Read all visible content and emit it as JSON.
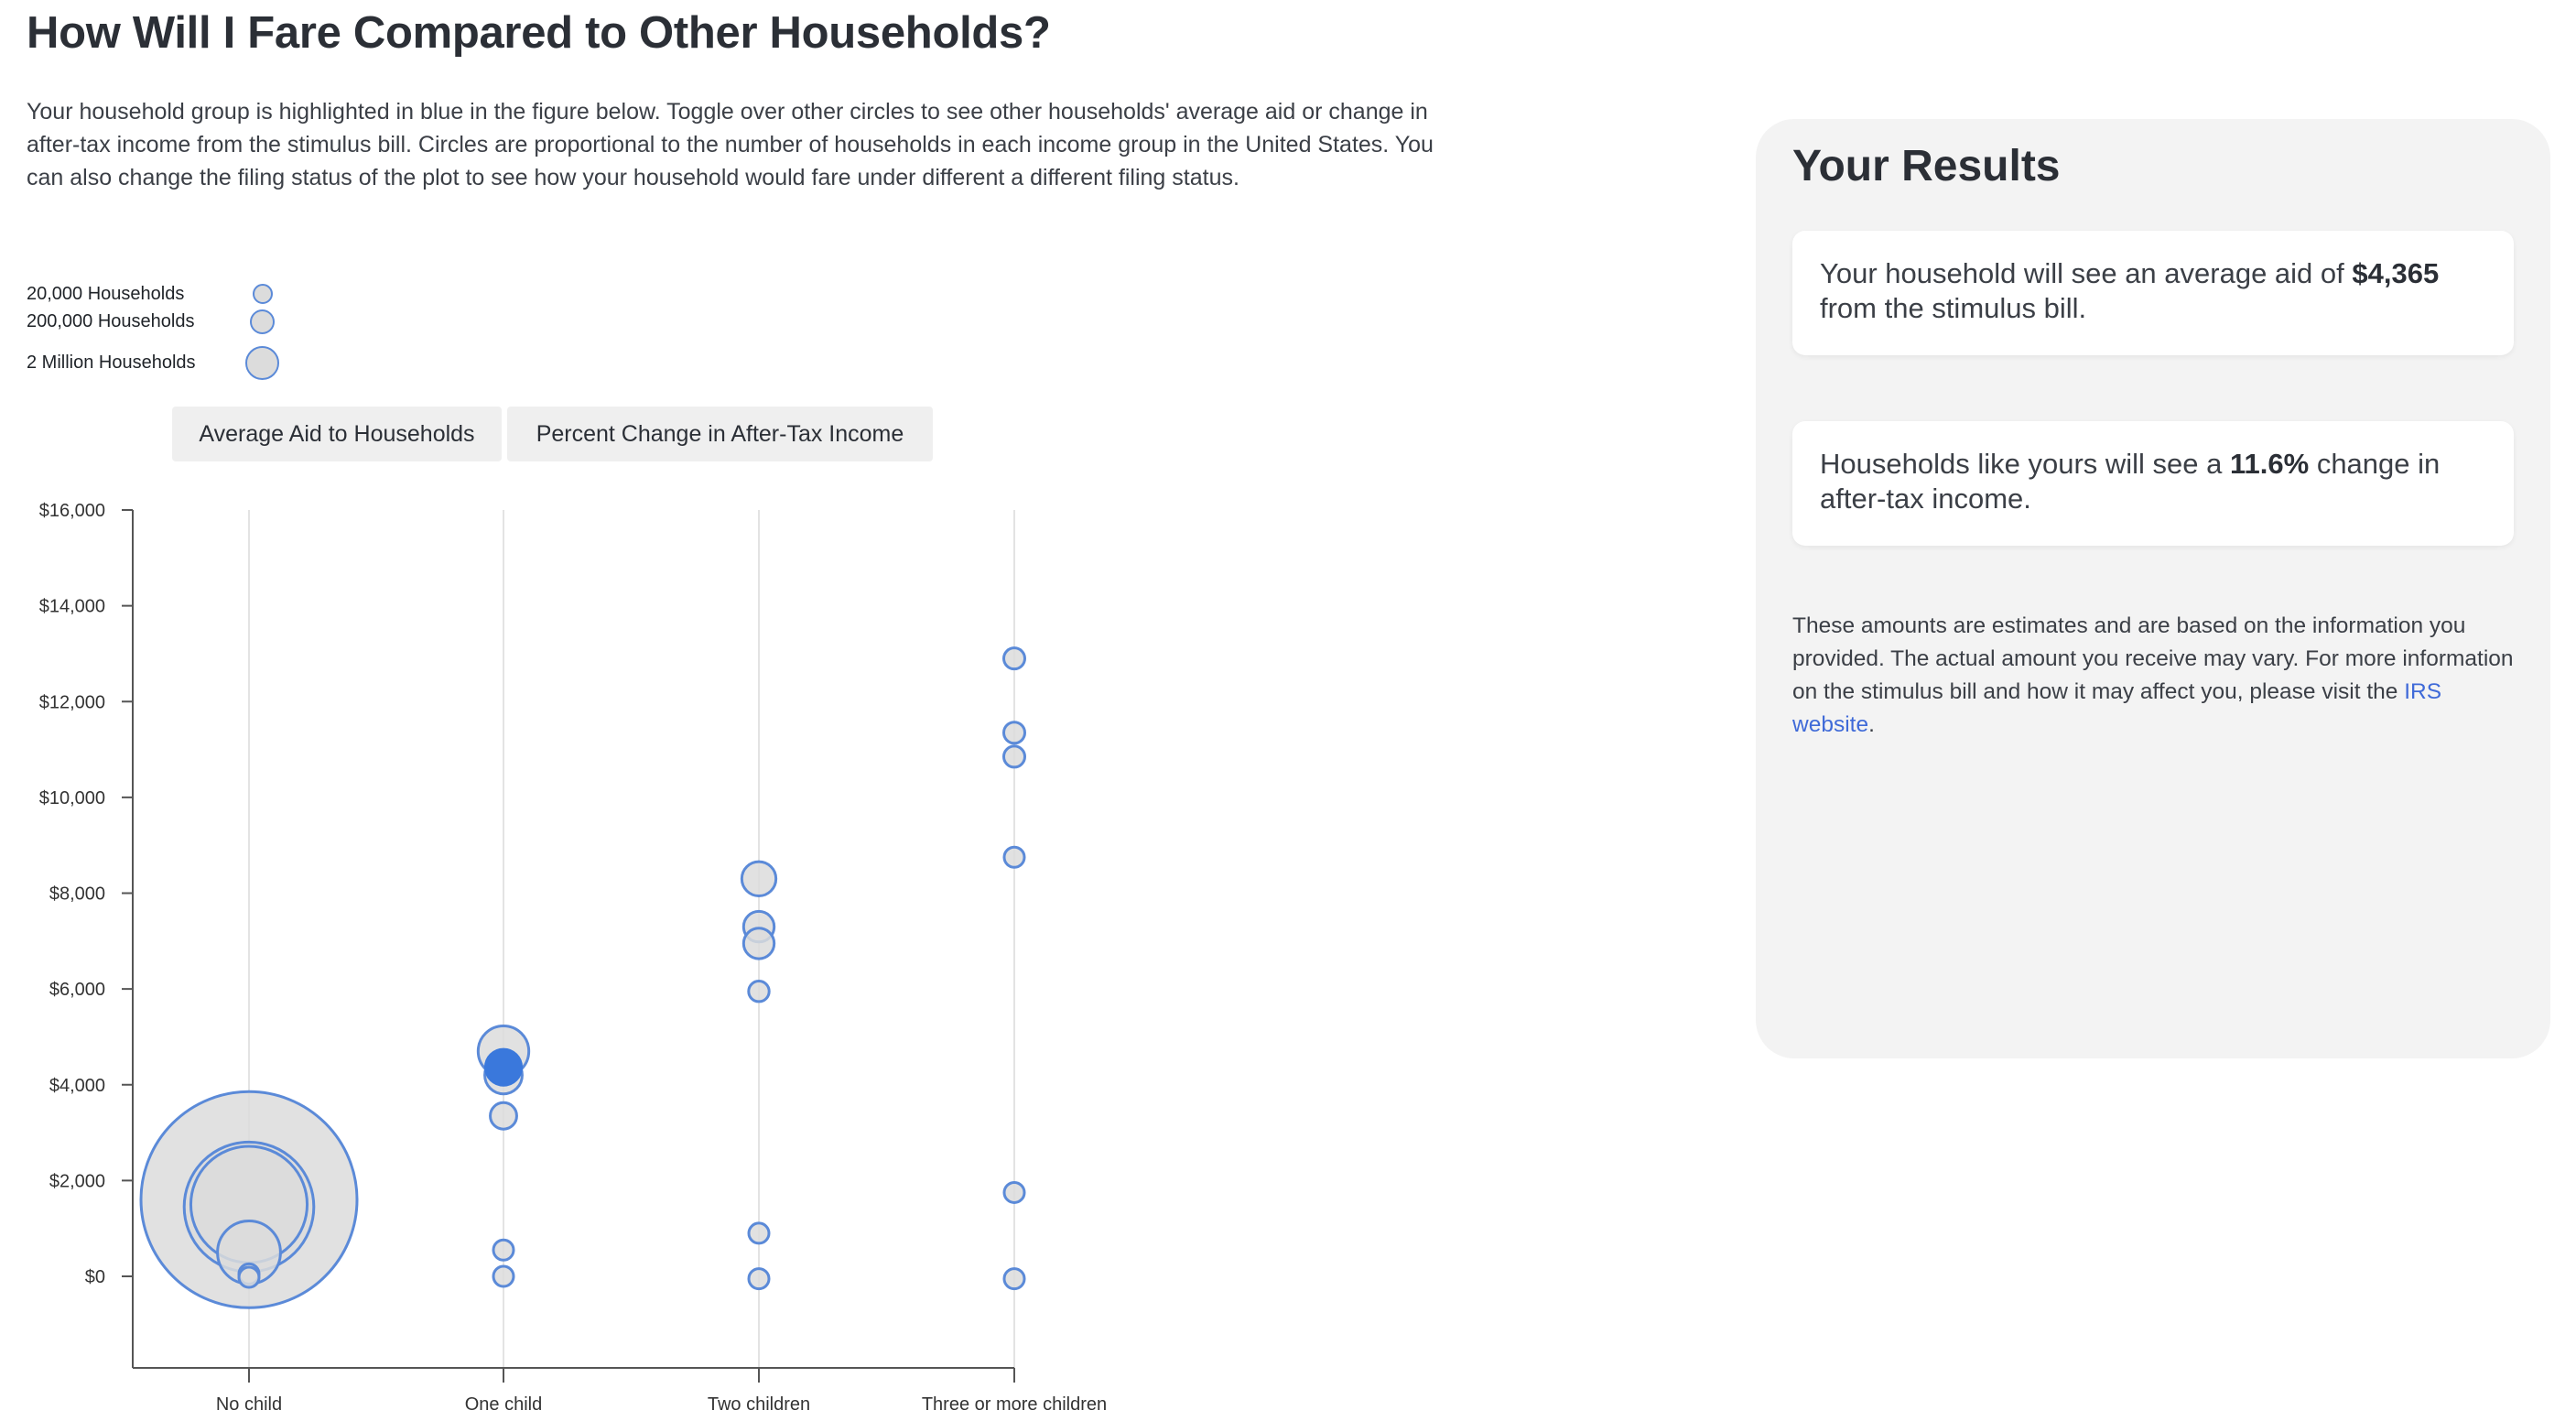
{
  "header": {
    "title": "How Will I Fare Compared to Other Households?",
    "intro": "Your household group is highlighted in blue in the figure below. Toggle over other circles to see other households' average aid or change in after-tax income from the stimulus bill. Circles are proportional to the number of households in each income group in the United States. You can also change the filing status of the plot to see how your household would fare under different a different filing status."
  },
  "legend": {
    "items": [
      {
        "label": "20,000 Households"
      },
      {
        "label": "200,000 Households"
      },
      {
        "label": "2 Million Households"
      }
    ]
  },
  "toggles": {
    "aid_label": "Average Aid to Households",
    "pct_label": "Percent Change in After-Tax Income"
  },
  "colors": {
    "highlight": "#3a78dc",
    "circle_fill": "#dcdcdc",
    "circle_stroke": "#5b8ad8",
    "axis": "#555555",
    "grid": "#e3e3e3"
  },
  "chart_data": {
    "type": "scatter",
    "ylim": [
      0,
      16000
    ],
    "yticks": [
      "$0",
      "$2,000",
      "$4,000",
      "$6,000",
      "$8,000",
      "$10,000",
      "$12,000",
      "$14,000",
      "$16,000"
    ],
    "ytick_values": [
      0,
      2000,
      4000,
      6000,
      8000,
      10000,
      12000,
      14000,
      16000
    ],
    "categories": [
      "No child",
      "One child",
      "Two children",
      "Three or more children"
    ],
    "points": [
      {
        "category": "No child",
        "y": 1600,
        "households": 20000000,
        "highlight": false
      },
      {
        "category": "No child",
        "y": 1450,
        "households": 7200000,
        "highlight": false
      },
      {
        "category": "No child",
        "y": 1500,
        "households": 5800000,
        "highlight": false
      },
      {
        "category": "No child",
        "y": 500,
        "households": 1700000,
        "highlight": false
      },
      {
        "category": "No child",
        "y": 50,
        "households": 160000,
        "highlight": false
      },
      {
        "category": "No child",
        "y": -20,
        "households": 90000,
        "highlight": false
      },
      {
        "category": "One child",
        "y": 4700,
        "households": 1100000,
        "highlight": false
      },
      {
        "category": "One child",
        "y": 4200,
        "households": 600000,
        "highlight": false
      },
      {
        "category": "One child",
        "y": 4365,
        "households": 550000,
        "highlight": true
      },
      {
        "category": "One child",
        "y": 3350,
        "households": 300000,
        "highlight": false
      },
      {
        "category": "One child",
        "y": 550,
        "households": 160000,
        "highlight": false
      },
      {
        "category": "One child",
        "y": 0,
        "households": 130000,
        "highlight": false
      },
      {
        "category": "Two children",
        "y": 8300,
        "households": 500000,
        "highlight": false
      },
      {
        "category": "Two children",
        "y": 7300,
        "households": 400000,
        "highlight": false
      },
      {
        "category": "Two children",
        "y": 6950,
        "households": 400000,
        "highlight": false
      },
      {
        "category": "Two children",
        "y": 5950,
        "households": 180000,
        "highlight": false
      },
      {
        "category": "Two children",
        "y": 900,
        "households": 140000,
        "highlight": false
      },
      {
        "category": "Two children",
        "y": -50,
        "households": 130000,
        "highlight": false
      },
      {
        "category": "Three or more children",
        "y": 12900,
        "households": 190000,
        "highlight": false
      },
      {
        "category": "Three or more children",
        "y": 11350,
        "households": 190000,
        "highlight": false
      },
      {
        "category": "Three or more children",
        "y": 10850,
        "households": 190000,
        "highlight": false
      },
      {
        "category": "Three or more children",
        "y": 8750,
        "households": 130000,
        "highlight": false
      },
      {
        "category": "Three or more children",
        "y": 1750,
        "households": 130000,
        "highlight": false
      },
      {
        "category": "Three or more children",
        "y": -50,
        "households": 120000,
        "highlight": false
      }
    ]
  },
  "results": {
    "title": "Your Results",
    "aid_prefix": "Your household will see an average aid of ",
    "aid_value": "$4,365",
    "aid_suffix": " from the stimulus bill.",
    "pct_prefix": "Households like yours will see a ",
    "pct_value": "11.6%",
    "pct_suffix": " change in after-tax income.",
    "note_text": "These amounts are estimates and are based on the information you provided. The actual amount you receive may vary. For more information on the stimulus bill and how it may affect you, please visit the ",
    "note_link": "IRS website",
    "note_end": "."
  }
}
